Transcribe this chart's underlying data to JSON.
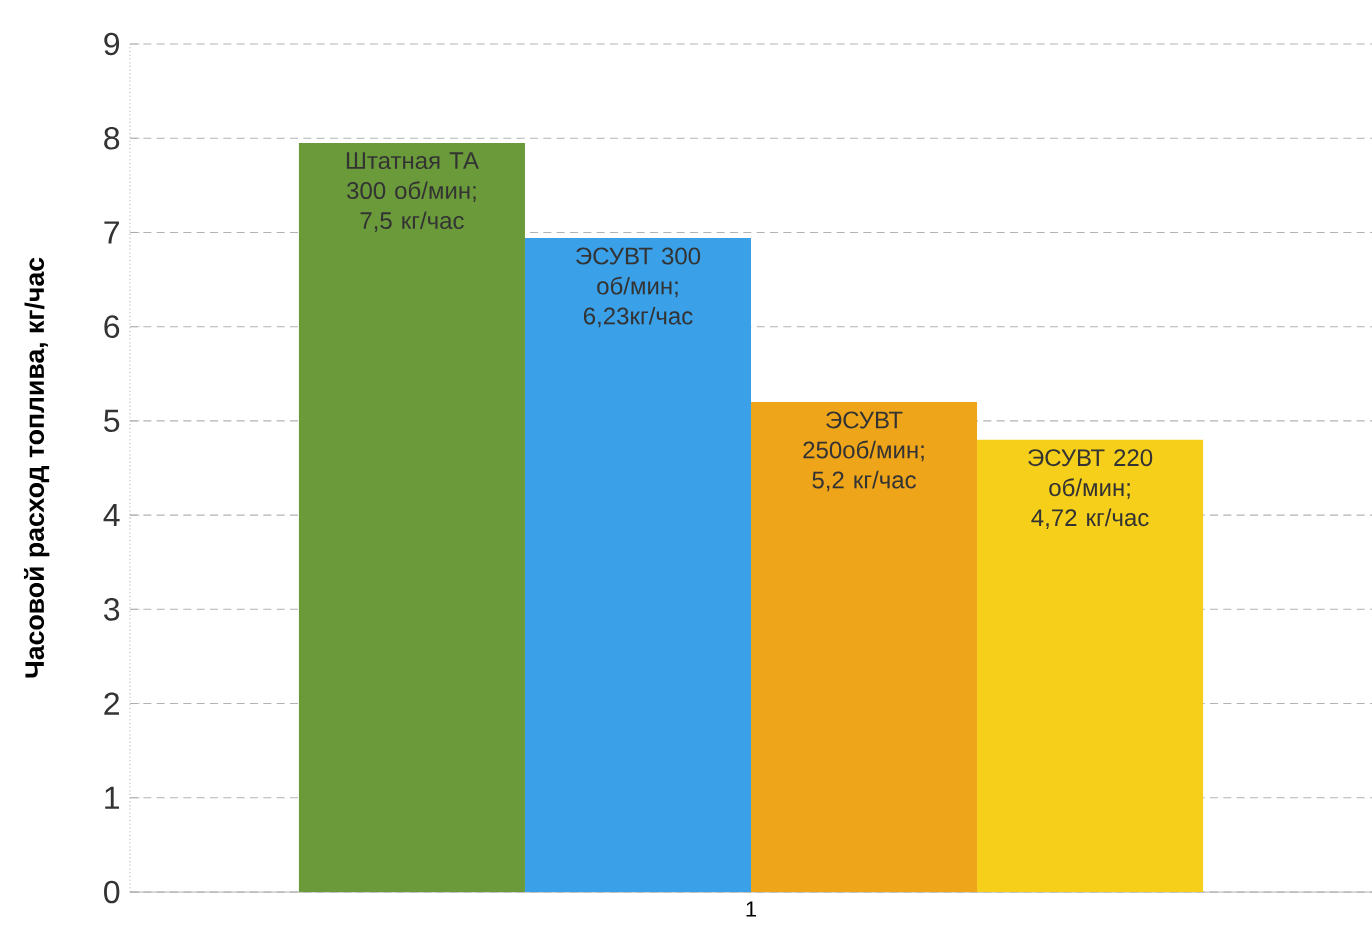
{
  "chart_data": {
    "type": "bar",
    "ylabel": "Часовой расход топлива, кг/час",
    "categories": [
      "1"
    ],
    "ylim": [
      0,
      9
    ],
    "yticks": [
      0,
      1,
      2,
      3,
      4,
      5,
      6,
      7,
      8,
      9
    ],
    "grid": "y",
    "series": [
      {
        "color": "#6a9a3a",
        "values": [
          7.95
        ],
        "value_labels": [
          "Штатная ТА 300 об/мин; 7,5 кг/час"
        ]
      },
      {
        "color": "#3aa0e8",
        "values": [
          6.94
        ],
        "value_labels": [
          "ЭСУВТ 300 об/мин; 6,23кг/час"
        ]
      },
      {
        "color": "#eea51a",
        "values": [
          5.2
        ],
        "value_labels": [
          "ЭСУВТ 250об/мин; 5,2 кг/час"
        ]
      },
      {
        "color": "#f5cf1a",
        "values": [
          4.8
        ],
        "value_labels": [
          "ЭСУВТ 220 об/мин; 4,72 кг/час"
        ]
      }
    ]
  }
}
